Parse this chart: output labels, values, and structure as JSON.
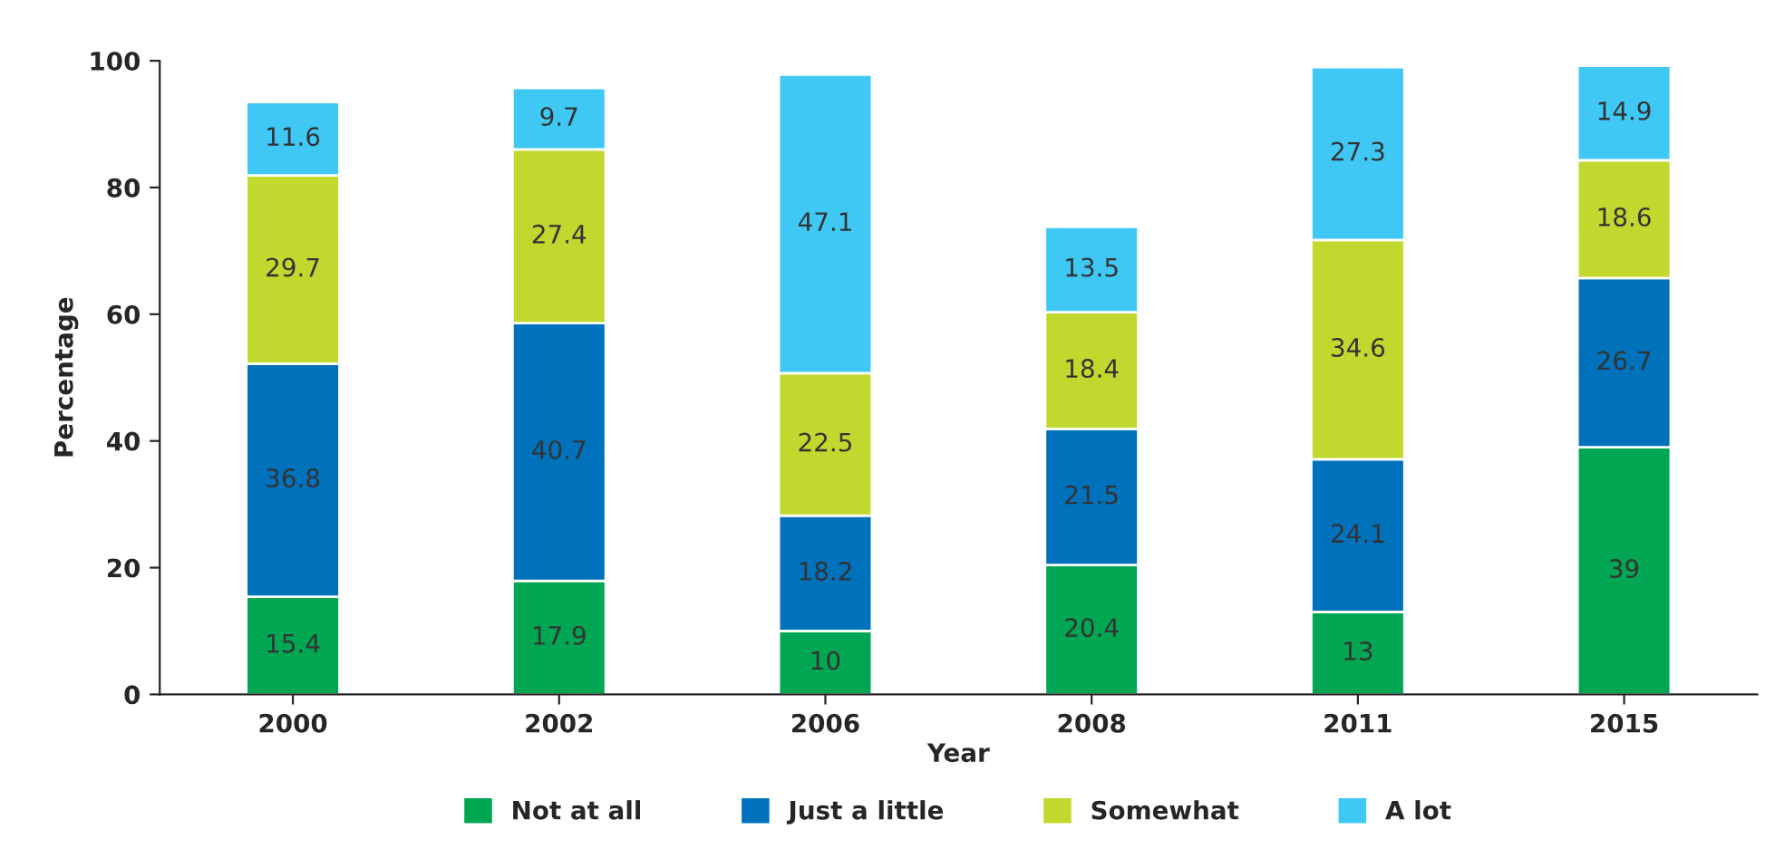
{
  "chart_data": {
    "type": "bar",
    "stacked": true,
    "xlabel": "Year",
    "ylabel": "Percentage",
    "categories": [
      "2000",
      "2002",
      "2006",
      "2008",
      "2011",
      "2015"
    ],
    "series": [
      {
        "name": "Not at all",
        "color": "#00a651",
        "values": [
          15.4,
          17.9,
          10,
          20.4,
          13,
          39
        ]
      },
      {
        "name": "Just a little",
        "color": "#0072bc",
        "values": [
          36.8,
          40.7,
          18.2,
          21.5,
          24.1,
          26.7
        ]
      },
      {
        "name": "Somewhat",
        "color": "#c1d82f",
        "values": [
          29.7,
          27.4,
          22.5,
          18.4,
          34.6,
          18.6
        ]
      },
      {
        "name": "A lot",
        "color": "#3fc8f4",
        "values": [
          11.6,
          9.7,
          47.1,
          13.5,
          27.3,
          14.9
        ]
      }
    ],
    "data_labels": true,
    "ylim": [
      0,
      100
    ],
    "yticks": [
      0,
      20,
      40,
      60,
      80,
      100
    ],
    "grid": false,
    "legend": "bottom"
  }
}
